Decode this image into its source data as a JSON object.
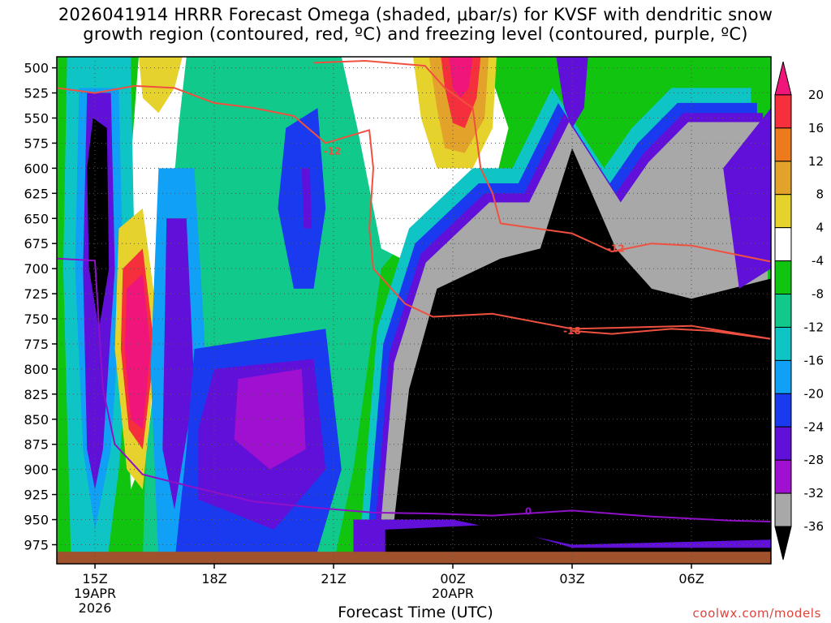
{
  "title": {
    "line1": "2026041914 HRRR Forecast Omega (shaded, μbar/s) for KVSF with dendritic snow",
    "line2": "growth region (contoured, red, ºC) and freezing level (contoured, purple, ºC)"
  },
  "credit": "coolwx.com/models",
  "chart_data": {
    "type": "heatmap",
    "title": "2026041914 HRRR Forecast Omega (shaded, μbar/s) for KVSF with dendritic snow growth region (contoured, red, ºC) and freezing level (contoured, purple, ºC)",
    "xlabel": "Forecast Time (UTC)",
    "ylabel": "",
    "x_ticks": [
      {
        "label": "15Z",
        "sub": [
          "19APR",
          "2026"
        ],
        "hour": 0
      },
      {
        "label": "18Z",
        "sub": [],
        "hour": 3
      },
      {
        "label": "21Z",
        "sub": [],
        "hour": 6
      },
      {
        "label": "00Z",
        "sub": [
          "20APR"
        ],
        "hour": 9
      },
      {
        "label": "03Z",
        "sub": [],
        "hour": 12
      },
      {
        "label": "06Z",
        "sub": [],
        "hour": 15
      }
    ],
    "xlim_hours": [
      -0.96,
      17.0
    ],
    "y_ticks": [
      500,
      525,
      550,
      575,
      600,
      625,
      650,
      675,
      700,
      725,
      750,
      775,
      800,
      825,
      850,
      875,
      900,
      925,
      950,
      975
    ],
    "ylim_hpa": [
      489,
      994
    ],
    "grid": true,
    "colorbar": {
      "labels": [
        "20",
        "16",
        "12",
        "8",
        "4",
        "-4",
        "-8",
        "-12",
        "-16",
        "-20",
        "-24",
        "-28",
        "-32",
        "-36"
      ],
      "colors": [
        "#f0157a",
        "#f5303c",
        "#ee7a1e",
        "#e3a22a",
        "#e6d22d",
        "#ffffff",
        "#10c410",
        "#11c98a",
        "#0fc4c4",
        "#10a0f5",
        "#1a3af0",
        "#6010d8",
        "#a010d0",
        "#a8a8a8",
        "#000000"
      ]
    },
    "contours": [
      {
        "name": "-12",
        "color": "#f05040",
        "points": [
          [
            -0.96,
            520
          ],
          [
            0,
            525
          ],
          [
            1,
            518
          ],
          [
            2,
            520
          ],
          [
            3,
            535
          ],
          [
            4,
            540
          ],
          [
            5,
            548
          ],
          [
            5.8,
            575
          ],
          [
            6.9,
            562
          ],
          [
            7.0,
            600
          ],
          [
            6.9,
            660
          ],
          [
            7.0,
            700
          ],
          [
            7.8,
            735
          ],
          [
            8.5,
            748
          ],
          [
            10,
            745
          ],
          [
            12,
            760
          ],
          [
            15,
            757
          ],
          [
            17,
            770
          ]
        ],
        "label_at": [
          5.97,
          583
        ]
      },
      {
        "name": "-12",
        "color": "#f05040",
        "points": [
          [
            5.5,
            495
          ],
          [
            6.8,
            493
          ],
          [
            8.3,
            498
          ],
          [
            8.8,
            520
          ],
          [
            9.5,
            540
          ],
          [
            9.7,
            600
          ],
          [
            10,
            625
          ],
          [
            10.2,
            655
          ],
          [
            12,
            665
          ],
          [
            13,
            683
          ],
          [
            14,
            675
          ],
          [
            15,
            677
          ],
          [
            17,
            693
          ]
        ],
        "label_at": [
          13.1,
          680
        ]
      },
      {
        "name": "-18",
        "color": "#f05040",
        "points": [
          [
            12.0,
            762
          ],
          [
            13,
            765
          ],
          [
            14.5,
            760
          ],
          [
            15.5,
            762
          ],
          [
            17,
            770
          ]
        ],
        "label_at": [
          12.0,
          762
        ]
      },
      {
        "name": "0",
        "color": "#9010c8",
        "points": [
          [
            -0.96,
            690
          ],
          [
            0,
            692
          ],
          [
            0.2,
            820
          ],
          [
            0.5,
            875
          ],
          [
            1.2,
            905
          ],
          [
            2.5,
            918
          ],
          [
            4,
            932
          ],
          [
            5.5,
            938
          ],
          [
            7,
            943
          ],
          [
            8.5,
            944
          ],
          [
            10,
            946
          ],
          [
            12,
            941
          ],
          [
            14,
            947
          ],
          [
            16,
            951
          ],
          [
            17,
            952
          ]
        ],
        "label_at": [
          10.9,
          942
        ]
      }
    ]
  }
}
